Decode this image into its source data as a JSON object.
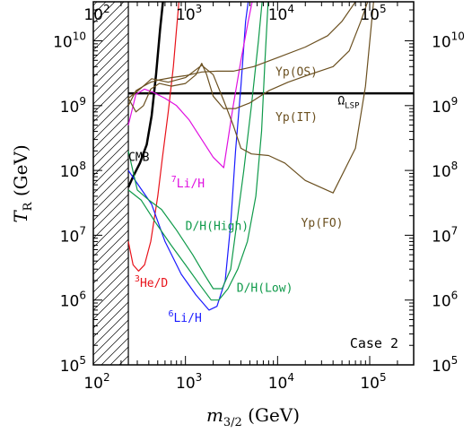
{
  "chart_data": {
    "type": "line",
    "xscale": "log",
    "yscale": "log",
    "xlim": [
      100,
      300000
    ],
    "ylim": [
      100000,
      40000000000
    ],
    "xlabel_main": "m",
    "xlabel_sub": "3/2",
    "xlabel_unit": " (GeV)",
    "ylabel_main": "T",
    "ylabel_sub": "R",
    "ylabel_unit": " (GeV)",
    "x_ticks": [
      {
        "value": 100,
        "base": "10",
        "exp": "2"
      },
      {
        "value": 1000,
        "base": "10",
        "exp": "3"
      },
      {
        "value": 10000,
        "base": "10",
        "exp": "4"
      },
      {
        "value": 100000,
        "base": "10",
        "exp": "5"
      }
    ],
    "y_ticks": [
      {
        "value": 100000,
        "base": "10",
        "exp": "5"
      },
      {
        "value": 1000000,
        "base": "10",
        "exp": "6"
      },
      {
        "value": 10000000,
        "base": "10",
        "exp": "7"
      },
      {
        "value": 100000000,
        "base": "10",
        "exp": "8"
      },
      {
        "value": 1000000000,
        "base": "10",
        "exp": "9"
      },
      {
        "value": 10000000000,
        "base": "10",
        "exp": "10"
      }
    ],
    "annotation": "Case 2",
    "excluded_region_xmax": 240,
    "grid": false,
    "series": [
      {
        "name": "CMB",
        "color": "#000000",
        "width": 2.5,
        "points": [
          [
            240,
            55000000
          ],
          [
            270,
            80000000
          ],
          [
            320,
            130000000
          ],
          [
            380,
            250000000
          ],
          [
            430,
            700000000
          ],
          [
            480,
            3000000000
          ],
          [
            530,
            15000000000
          ],
          [
            570,
            40000000000
          ]
        ],
        "label": {
          "parts": [
            {
              "t": "CMB"
            }
          ],
          "at": [
            240,
            140000000
          ],
          "color": "#000000"
        }
      },
      {
        "name": "Ω_LSP",
        "color": "#000000",
        "width": 2.5,
        "points": [
          [
            240,
            1550000000
          ],
          [
            300000,
            1550000000
          ]
        ],
        "label": {
          "parts": [
            {
              "t": "Ω"
            },
            {
              "t": "LSP",
              "sub": true
            }
          ],
          "at": [
            45000,
            1050000000
          ],
          "color": "#000000"
        }
      },
      {
        "name": "3He/D",
        "color": "#e8121a",
        "points": [
          [
            240,
            8000000
          ],
          [
            270,
            3500000
          ],
          [
            310,
            2800000
          ],
          [
            360,
            3500000
          ],
          [
            420,
            8000000
          ],
          [
            500,
            40000000
          ],
          [
            560,
            150000000
          ],
          [
            650,
            800000000
          ],
          [
            740,
            4000000000
          ],
          [
            800,
            15000000000
          ],
          [
            850,
            40000000000
          ]
        ],
        "label": {
          "parts": [
            {
              "t": "3",
              "sup": true
            },
            {
              "t": "He/D"
            }
          ],
          "at": [
            280,
            1600000
          ],
          "color": "#e8121a"
        }
      },
      {
        "name": "6Li/H",
        "color": "#1a1aff",
        "points": [
          [
            240,
            100000000
          ],
          [
            320,
            55000000
          ],
          [
            430,
            30000000
          ],
          [
            600,
            8000000
          ],
          [
            900,
            2500000
          ],
          [
            1300,
            1200000
          ],
          [
            1800,
            700000
          ],
          [
            2200,
            800000
          ],
          [
            2700,
            2000000
          ],
          [
            3100,
            15000000
          ],
          [
            3500,
            200000000
          ],
          [
            4000,
            2000000000
          ],
          [
            4500,
            20000000000
          ],
          [
            4800,
            40000000000
          ]
        ],
        "label": {
          "parts": [
            {
              "t": "6",
              "sup": true
            },
            {
              "t": "Li/H"
            }
          ],
          "at": [
            650,
            460000
          ],
          "color": "#1a1aff"
        }
      },
      {
        "name": "7Li/H",
        "color": "#e010e0",
        "points": [
          [
            240,
            500000000
          ],
          [
            290,
            1500000000
          ],
          [
            360,
            1800000000
          ],
          [
            450,
            1600000000
          ],
          [
            600,
            1300000000
          ],
          [
            800,
            1000000000
          ],
          [
            1100,
            600000000
          ],
          [
            1500,
            300000000
          ],
          [
            2000,
            160000000
          ],
          [
            2600,
            110000000
          ],
          [
            3300,
            1000000000
          ],
          [
            4000,
            5000000000
          ],
          [
            4800,
            20000000000
          ],
          [
            5300,
            40000000000
          ]
        ],
        "label": {
          "parts": [
            {
              "t": "7",
              "sup": true
            },
            {
              "t": "Li/H"
            }
          ],
          "at": [
            700,
            55000000
          ],
          "color": "#e010e0"
        }
      },
      {
        "name": "D/H(High)",
        "color": "#0f9a4a",
        "points": [
          [
            240,
            200000000
          ],
          [
            300,
            50000000
          ],
          [
            400,
            35000000
          ],
          [
            550,
            25000000
          ],
          [
            800,
            12000000
          ],
          [
            1200,
            5000000
          ],
          [
            1600,
            2500000
          ],
          [
            2000,
            1500000
          ],
          [
            2500,
            1500000
          ],
          [
            3100,
            3000000
          ],
          [
            3700,
            20000000
          ],
          [
            4300,
            100000000
          ],
          [
            5200,
            1000000000
          ],
          [
            6200,
            10000000000
          ],
          [
            6800,
            40000000000
          ]
        ],
        "label": {
          "parts": [
            {
              "t": "D/H(High)"
            }
          ],
          "at": [
            1000,
            12000000
          ],
          "color": "#0f9a4a"
        }
      },
      {
        "name": "D/H(Low)",
        "color": "#0f9a4a",
        "points": [
          [
            240,
            50000000
          ],
          [
            330,
            35000000
          ],
          [
            470,
            16000000
          ],
          [
            700,
            7000000
          ],
          [
            1000,
            3500000
          ],
          [
            1400,
            1800000
          ],
          [
            1900,
            1000000
          ],
          [
            2300,
            1000000
          ],
          [
            2900,
            1500000
          ],
          [
            3700,
            3000000
          ],
          [
            4700,
            8000000
          ],
          [
            5800,
            40000000
          ],
          [
            6700,
            400000000
          ],
          [
            7300,
            5000000000
          ],
          [
            7900,
            40000000000
          ]
        ],
        "label": {
          "parts": [
            {
              "t": "D/H(Low)"
            }
          ],
          "at": [
            3600,
            1350000
          ],
          "color": "#0f9a4a"
        }
      },
      {
        "name": "Yp(OS)",
        "color": "#6b5020",
        "points": [
          [
            240,
            1000000000
          ],
          [
            290,
            1700000000
          ],
          [
            350,
            2000000000
          ],
          [
            420,
            2300000000
          ],
          [
            520,
            2500000000
          ],
          [
            700,
            2700000000
          ],
          [
            1000,
            2900000000
          ],
          [
            1500,
            3300000000
          ],
          [
            2200,
            3400000000
          ],
          [
            3300,
            3400000000
          ],
          [
            5500,
            4000000000
          ],
          [
            10000,
            5500000000
          ],
          [
            20000,
            8000000000
          ],
          [
            35000,
            12000000000
          ],
          [
            50000,
            20000000000
          ],
          [
            70000,
            40000000000
          ]
        ],
        "label": {
          "parts": [
            {
              "t": "Yp(OS)"
            }
          ],
          "at": [
            9500,
            2900000000
          ],
          "color": "#6b5020"
        }
      },
      {
        "name": "Yp(IT)",
        "color": "#6b5020",
        "points": [
          [
            240,
            1300000000
          ],
          [
            290,
            800000000
          ],
          [
            350,
            1000000000
          ],
          [
            420,
            1800000000
          ],
          [
            520,
            2200000000
          ],
          [
            700,
            2000000000
          ],
          [
            1000,
            2200000000
          ],
          [
            1300,
            3000000000
          ],
          [
            1500,
            4500000000
          ],
          [
            1700,
            3000000000
          ],
          [
            2000,
            1400000000
          ],
          [
            2600,
            900000000
          ],
          [
            3500,
            900000000
          ],
          [
            5000,
            1100000000
          ],
          [
            8000,
            1700000000
          ],
          [
            13000,
            2300000000
          ],
          [
            22000,
            3000000000
          ],
          [
            40000,
            4000000000
          ],
          [
            60000,
            7000000000
          ],
          [
            80000,
            20000000000
          ],
          [
            95000,
            40000000000
          ]
        ],
        "label": {
          "parts": [
            {
              "t": "Yp(IT)"
            }
          ],
          "at": [
            9500,
            580000000
          ],
          "color": "#6b5020"
        }
      },
      {
        "name": "Yp(FO)",
        "color": "#6b5020",
        "points": [
          [
            240,
            1300000000
          ],
          [
            320,
            1800000000
          ],
          [
            430,
            2600000000
          ],
          [
            650,
            2300000000
          ],
          [
            1000,
            2700000000
          ],
          [
            1500,
            4200000000
          ],
          [
            2000,
            3000000000
          ],
          [
            2600,
            1200000000
          ],
          [
            3300,
            500000000
          ],
          [
            4000,
            220000000
          ],
          [
            5200,
            180000000
          ],
          [
            8000,
            170000000
          ],
          [
            12000,
            130000000
          ],
          [
            20000,
            70000000
          ],
          [
            40000,
            45000000
          ],
          [
            70000,
            220000000
          ],
          [
            90000,
            2000000000
          ],
          [
            110000,
            40000000000
          ]
        ],
        "label": {
          "parts": [
            {
              "t": "Yp(FO)"
            }
          ],
          "at": [
            18000,
            13500000
          ],
          "color": "#6b5020"
        }
      }
    ]
  }
}
